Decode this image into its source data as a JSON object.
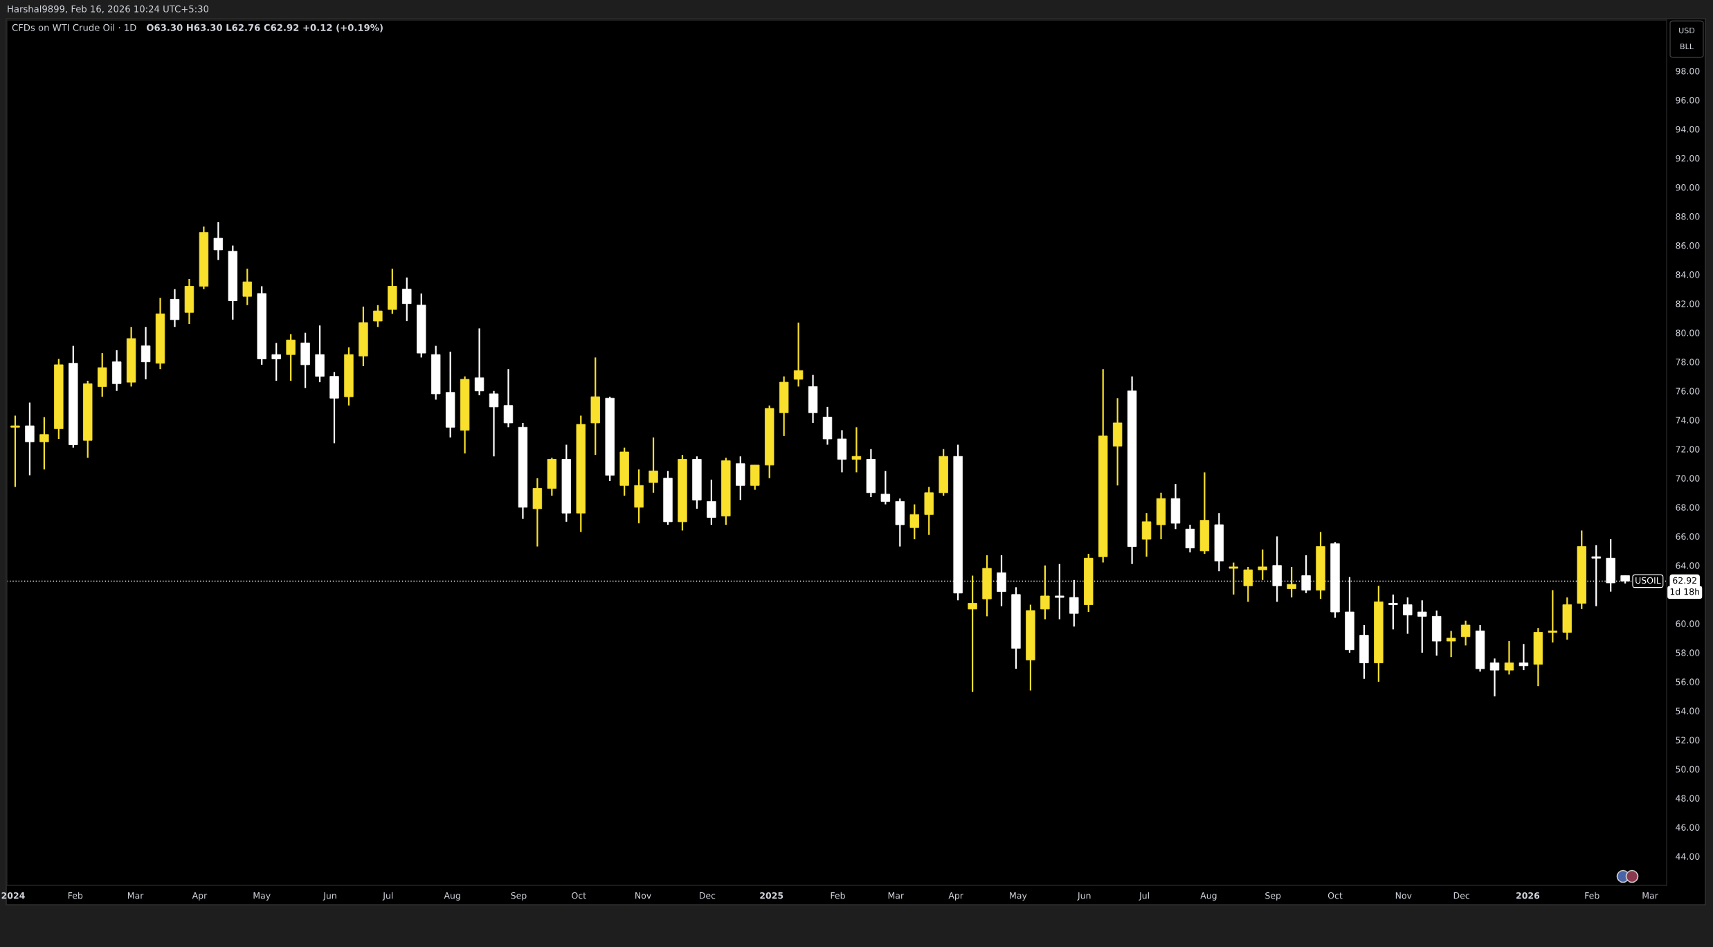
{
  "chart_data": {
    "type": "candlestick",
    "title": "CFDs on WTI Crude Oil · 1D",
    "subtitle": "O63.30 H63.30 L62.76 C62.92 +0.12 (+0.19%)",
    "annotations": [
      "Harshal9899, Feb 16, 2026 10:24 UTC+5:30",
      "USD",
      "BLL",
      "62.92",
      "1d 18h"
    ],
    "x": [
      "2024-01-03",
      "2024-01-10",
      "2024-01-17",
      "2024-01-24",
      "2024-01-31",
      "2024-02-07",
      "2024-02-14",
      "2024-02-21",
      "2024-02-28",
      "2024-03-06",
      "2024-03-13",
      "2024-03-20",
      "2024-03-27",
      "2024-04-03",
      "2024-04-10",
      "2024-04-17",
      "2024-04-24",
      "2024-05-01",
      "2024-05-08",
      "2024-05-15",
      "2024-05-22",
      "2024-05-29",
      "2024-06-05",
      "2024-06-12",
      "2024-06-19",
      "2024-06-26",
      "2024-07-03",
      "2024-07-10",
      "2024-07-17",
      "2024-07-24",
      "2024-07-31",
      "2024-08-07",
      "2024-08-14",
      "2024-08-21",
      "2024-08-28",
      "2024-09-04",
      "2024-09-11",
      "2024-09-18",
      "2024-09-25",
      "2024-10-02",
      "2024-10-09",
      "2024-10-16",
      "2024-10-23",
      "2024-10-30",
      "2024-11-06",
      "2024-11-13",
      "2024-11-20",
      "2024-11-27",
      "2024-12-04",
      "2024-12-11",
      "2024-12-18",
      "2024-12-25",
      "2025-01-01",
      "2025-01-08",
      "2025-01-15",
      "2025-01-22",
      "2025-01-29",
      "2025-02-05",
      "2025-02-12",
      "2025-02-19",
      "2025-02-26",
      "2025-03-05",
      "2025-03-12",
      "2025-03-19",
      "2025-03-26",
      "2025-04-02",
      "2025-04-09",
      "2025-04-16",
      "2025-04-23",
      "2025-04-30",
      "2025-05-07",
      "2025-05-14",
      "2025-05-21",
      "2025-05-28",
      "2025-06-04",
      "2025-06-11",
      "2025-06-18",
      "2025-06-25",
      "2025-07-02",
      "2025-07-09",
      "2025-07-16",
      "2025-07-23",
      "2025-07-30",
      "2025-08-06",
      "2025-08-13",
      "2025-08-20",
      "2025-08-27",
      "2025-09-03",
      "2025-09-10",
      "2025-09-17",
      "2025-09-24",
      "2025-10-01",
      "2025-10-08",
      "2025-10-15",
      "2025-10-22",
      "2025-10-29",
      "2025-11-05",
      "2025-11-12",
      "2025-11-19",
      "2025-11-26",
      "2025-12-03",
      "2025-12-10",
      "2025-12-17",
      "2025-12-24",
      "2025-12-31",
      "2026-01-07",
      "2026-01-14",
      "2026-01-21",
      "2026-01-28",
      "2026-02-04",
      "2026-02-11",
      "2026-02-18"
    ],
    "ohlc": [
      [
        73.5,
        74.3,
        69.4,
        73.6
      ],
      [
        73.6,
        75.2,
        70.2,
        72.5
      ],
      [
        72.5,
        74.2,
        70.6,
        73.0
      ],
      [
        73.4,
        78.2,
        72.7,
        77.8
      ],
      [
        77.9,
        79.1,
        72.1,
        72.3
      ],
      [
        72.6,
        76.7,
        71.4,
        76.5
      ],
      [
        76.3,
        78.6,
        75.6,
        77.6
      ],
      [
        78.0,
        78.8,
        76.0,
        76.5
      ],
      [
        76.6,
        80.4,
        76.3,
        79.6
      ],
      [
        79.1,
        80.4,
        76.8,
        78.0
      ],
      [
        77.9,
        82.4,
        77.5,
        81.3
      ],
      [
        82.3,
        83.0,
        80.4,
        80.9
      ],
      [
        81.4,
        83.7,
        80.6,
        83.2
      ],
      [
        83.2,
        87.3,
        83.0,
        86.9
      ],
      [
        86.5,
        87.6,
        85.0,
        85.7
      ],
      [
        85.6,
        86.0,
        80.9,
        82.2
      ],
      [
        82.5,
        84.4,
        81.9,
        83.5
      ],
      [
        82.7,
        83.2,
        77.8,
        78.2
      ],
      [
        78.5,
        79.3,
        76.7,
        78.2
      ],
      [
        78.5,
        79.9,
        76.7,
        79.5
      ],
      [
        79.3,
        80.0,
        76.2,
        77.8
      ],
      [
        78.5,
        80.5,
        76.6,
        77.0
      ],
      [
        77.0,
        77.3,
        72.4,
        75.5
      ],
      [
        75.6,
        79.0,
        75.0,
        78.5
      ],
      [
        78.4,
        81.8,
        77.7,
        80.7
      ],
      [
        80.8,
        81.9,
        80.4,
        81.5
      ],
      [
        81.6,
        84.4,
        81.3,
        83.2
      ],
      [
        83.0,
        83.8,
        80.8,
        82.0
      ],
      [
        81.9,
        82.7,
        78.3,
        78.6
      ],
      [
        78.5,
        79.1,
        75.4,
        75.8
      ],
      [
        75.9,
        78.7,
        72.8,
        73.5
      ],
      [
        73.3,
        77.0,
        71.7,
        76.8
      ],
      [
        76.9,
        80.3,
        75.7,
        76.0
      ],
      [
        75.8,
        76.0,
        71.5,
        74.9
      ],
      [
        75.0,
        77.5,
        73.5,
        73.8
      ],
      [
        73.5,
        73.8,
        67.2,
        68.0
      ],
      [
        67.9,
        70.0,
        65.3,
        69.3
      ],
      [
        69.3,
        71.4,
        68.8,
        71.3
      ],
      [
        71.3,
        72.3,
        67.0,
        67.6
      ],
      [
        67.6,
        74.3,
        66.3,
        73.7
      ],
      [
        73.8,
        78.3,
        71.6,
        75.6
      ],
      [
        75.5,
        75.6,
        69.8,
        70.2
      ],
      [
        69.5,
        72.1,
        68.8,
        71.8
      ],
      [
        68.0,
        70.6,
        66.9,
        69.5
      ],
      [
        69.7,
        72.8,
        69.0,
        70.5
      ],
      [
        70.0,
        70.5,
        66.8,
        67.0
      ],
      [
        67.0,
        71.6,
        66.4,
        71.3
      ],
      [
        71.3,
        71.5,
        67.9,
        68.5
      ],
      [
        68.4,
        69.9,
        66.8,
        67.3
      ],
      [
        67.4,
        71.4,
        66.8,
        71.2
      ],
      [
        71.0,
        71.5,
        68.5,
        69.5
      ],
      [
        69.5,
        70.9,
        69.2,
        70.9
      ],
      [
        70.9,
        75.0,
        70.0,
        74.8
      ],
      [
        74.5,
        77.0,
        72.9,
        76.6
      ],
      [
        76.8,
        80.7,
        76.3,
        77.4
      ],
      [
        76.3,
        77.1,
        73.8,
        74.5
      ],
      [
        74.2,
        74.9,
        72.3,
        72.7
      ],
      [
        72.7,
        73.3,
        70.4,
        71.3
      ],
      [
        71.3,
        73.5,
        70.4,
        71.5
      ],
      [
        71.3,
        72.0,
        68.7,
        69.0
      ],
      [
        68.9,
        70.5,
        68.2,
        68.4
      ],
      [
        68.4,
        68.6,
        65.3,
        66.8
      ],
      [
        66.6,
        68.2,
        65.8,
        67.5
      ],
      [
        67.5,
        69.4,
        66.1,
        69.0
      ],
      [
        69.0,
        72.0,
        68.8,
        71.5
      ],
      [
        71.5,
        72.3,
        61.6,
        62.1
      ],
      [
        61.0,
        63.3,
        55.3,
        61.4
      ],
      [
        61.7,
        64.7,
        60.5,
        63.8
      ],
      [
        63.5,
        64.7,
        61.2,
        62.2
      ],
      [
        62.0,
        62.5,
        56.9,
        58.3
      ],
      [
        57.5,
        61.3,
        55.4,
        60.9
      ],
      [
        61.0,
        64.0,
        60.3,
        61.9
      ],
      [
        61.9,
        64.1,
        60.3,
        61.8
      ],
      [
        61.8,
        63.0,
        59.8,
        60.7
      ],
      [
        61.3,
        64.8,
        60.8,
        64.5
      ],
      [
        64.6,
        77.5,
        64.2,
        72.9
      ],
      [
        72.2,
        75.5,
        69.5,
        73.8
      ],
      [
        76.0,
        77.0,
        64.1,
        65.3
      ],
      [
        65.8,
        67.6,
        64.6,
        67.0
      ],
      [
        66.8,
        69.0,
        65.8,
        68.6
      ],
      [
        68.6,
        69.6,
        66.5,
        66.9
      ],
      [
        66.5,
        66.8,
        64.9,
        65.2
      ],
      [
        65.0,
        70.4,
        64.8,
        67.1
      ],
      [
        66.8,
        67.6,
        63.6,
        64.3
      ],
      [
        63.8,
        64.2,
        62.0,
        63.9
      ],
      [
        62.6,
        63.9,
        61.5,
        63.7
      ],
      [
        63.7,
        65.1,
        63.0,
        63.9
      ],
      [
        64.0,
        66.0,
        61.5,
        62.6
      ],
      [
        62.4,
        63.9,
        61.8,
        62.7
      ],
      [
        63.3,
        64.7,
        62.1,
        62.3
      ],
      [
        62.3,
        66.3,
        61.7,
        65.3
      ],
      [
        65.5,
        65.6,
        60.4,
        60.8
      ],
      [
        60.8,
        63.2,
        58.0,
        58.2
      ],
      [
        59.2,
        59.9,
        56.2,
        57.3
      ],
      [
        57.3,
        62.6,
        56.0,
        61.5
      ],
      [
        61.4,
        62.0,
        59.6,
        61.3
      ],
      [
        61.3,
        61.8,
        59.3,
        60.6
      ],
      [
        60.8,
        61.6,
        58.0,
        60.5
      ],
      [
        60.5,
        60.9,
        57.8,
        58.8
      ],
      [
        58.8,
        59.5,
        57.7,
        59.0
      ],
      [
        59.1,
        60.2,
        58.5,
        59.9
      ],
      [
        59.5,
        59.9,
        56.7,
        56.9
      ],
      [
        57.3,
        57.6,
        55.0,
        56.8
      ],
      [
        56.8,
        58.8,
        56.5,
        57.3
      ],
      [
        57.3,
        58.6,
        56.8,
        57.1
      ],
      [
        57.2,
        59.7,
        55.7,
        59.4
      ],
      [
        59.4,
        62.3,
        58.7,
        59.5
      ],
      [
        59.4,
        61.8,
        58.9,
        61.3
      ],
      [
        61.4,
        66.4,
        61.0,
        65.3
      ],
      [
        64.6,
        65.4,
        61.2,
        64.5
      ],
      [
        64.5,
        65.8,
        62.2,
        62.8
      ],
      [
        63.3,
        63.3,
        62.76,
        62.92
      ]
    ],
    "colors": [
      "#f8e02c",
      "#ffffff",
      "#f8e02c",
      "#f8e02c",
      "#ffffff",
      "#f8e02c",
      "#f8e02c",
      "#ffffff",
      "#f8e02c",
      "#ffffff",
      "#f8e02c",
      "#ffffff",
      "#f8e02c",
      "#f8e02c",
      "#ffffff",
      "#ffffff",
      "#f8e02c",
      "#ffffff",
      "#ffffff",
      "#f8e02c",
      "#ffffff",
      "#ffffff",
      "#ffffff",
      "#f8e02c",
      "#f8e02c",
      "#f8e02c",
      "#f8e02c",
      "#ffffff",
      "#ffffff",
      "#ffffff",
      "#ffffff",
      "#f8e02c",
      "#ffffff",
      "#ffffff",
      "#ffffff",
      "#ffffff",
      "#f8e02c",
      "#f8e02c",
      "#ffffff",
      "#f8e02c",
      "#f8e02c",
      "#ffffff",
      "#f8e02c",
      "#f8e02c",
      "#f8e02c",
      "#ffffff",
      "#f8e02c",
      "#ffffff",
      "#ffffff",
      "#f8e02c",
      "#ffffff",
      "#f8e02c",
      "#f8e02c",
      "#f8e02c",
      "#f8e02c",
      "#ffffff",
      "#ffffff",
      "#ffffff",
      "#f8e02c",
      "#ffffff",
      "#ffffff",
      "#ffffff",
      "#f8e02c",
      "#f8e02c",
      "#f8e02c",
      "#ffffff",
      "#f8e02c",
      "#f8e02c",
      "#ffffff",
      "#ffffff",
      "#f8e02c",
      "#f8e02c",
      "#ffffff",
      "#ffffff",
      "#f8e02c",
      "#f8e02c",
      "#f8e02c",
      "#ffffff",
      "#f8e02c",
      "#f8e02c",
      "#ffffff",
      "#ffffff",
      "#f8e02c",
      "#ffffff",
      "#f8e02c",
      "#f8e02c",
      "#f8e02c",
      "#ffffff",
      "#f8e02c",
      "#ffffff",
      "#f8e02c",
      "#ffffff",
      "#ffffff",
      "#ffffff",
      "#f8e02c",
      "#ffffff",
      "#ffffff",
      "#ffffff",
      "#ffffff",
      "#f8e02c",
      "#f8e02c",
      "#ffffff",
      "#ffffff",
      "#f8e02c",
      "#ffffff",
      "#f8e02c",
      "#f8e02c",
      "#f8e02c",
      "#f8e02c",
      "#ffffff",
      "#ffffff",
      "#ffffff"
    ],
    "xlim": [
      "2023-12-30",
      "2026-03-10"
    ],
    "xticks": [
      {
        "value": "2024-01-02",
        "label": "2024"
      },
      {
        "value": "2024-02-01",
        "label": "Feb"
      },
      {
        "value": "2024-03-01",
        "label": "Mar"
      },
      {
        "value": "2024-04-01",
        "label": "Apr"
      },
      {
        "value": "2024-05-01",
        "label": "May"
      },
      {
        "value": "2024-06-03",
        "label": "Jun"
      },
      {
        "value": "2024-07-01",
        "label": "Jul"
      },
      {
        "value": "2024-08-01",
        "label": "Aug"
      },
      {
        "value": "2024-09-02",
        "label": "Sep"
      },
      {
        "value": "2024-10-01",
        "label": "Oct"
      },
      {
        "value": "2024-11-01",
        "label": "Nov"
      },
      {
        "value": "2024-12-02",
        "label": "Dec"
      },
      {
        "value": "2025-01-02",
        "label": "2025"
      },
      {
        "value": "2025-02-03",
        "label": "Feb"
      },
      {
        "value": "2025-03-03",
        "label": "Mar"
      },
      {
        "value": "2025-04-01",
        "label": "Apr"
      },
      {
        "value": "2025-05-01",
        "label": "May"
      },
      {
        "value": "2025-06-02",
        "label": "Jun"
      },
      {
        "value": "2025-07-01",
        "label": "Jul"
      },
      {
        "value": "2025-08-01",
        "label": "Aug"
      },
      {
        "value": "2025-09-01",
        "label": "Sep"
      },
      {
        "value": "2025-10-01",
        "label": "Oct"
      },
      {
        "value": "2025-11-03",
        "label": "Nov"
      },
      {
        "value": "2025-12-01",
        "label": "Dec"
      },
      {
        "value": "2026-01-02",
        "label": "2026"
      },
      {
        "value": "2026-02-02",
        "label": "Feb"
      },
      {
        "value": "2026-03-02",
        "label": "Mar"
      }
    ],
    "ylim": [
      42.0,
      101.5
    ],
    "yticks": [
      {
        "value": 44,
        "label": "44.00"
      },
      {
        "value": 46,
        "label": "46.00"
      },
      {
        "value": 48,
        "label": "48.00"
      },
      {
        "value": 50,
        "label": "50.00"
      },
      {
        "value": 52,
        "label": "52.00"
      },
      {
        "value": 54,
        "label": "54.00"
      },
      {
        "value": 56,
        "label": "56.00"
      },
      {
        "value": 58,
        "label": "58.00"
      },
      {
        "value": 60,
        "label": "60.00"
      },
      {
        "value": 64,
        "label": "64.00"
      },
      {
        "value": 66,
        "label": "66.00"
      },
      {
        "value": 68,
        "label": "68.00"
      },
      {
        "value": 70,
        "label": "70.00"
      },
      {
        "value": 72,
        "label": "72.00"
      },
      {
        "value": 74,
        "label": "74.00"
      },
      {
        "value": 76,
        "label": "76.00"
      },
      {
        "value": 78,
        "label": "78.00"
      },
      {
        "value": 80,
        "label": "80.00"
      },
      {
        "value": 82,
        "label": "82.00"
      },
      {
        "value": 84,
        "label": "84.00"
      },
      {
        "value": 86,
        "label": "86.00"
      },
      {
        "value": 88,
        "label": "88.00"
      },
      {
        "value": 90,
        "label": "90.00"
      },
      {
        "value": 92,
        "label": "92.00"
      },
      {
        "value": 94,
        "label": "94.00"
      },
      {
        "value": 96,
        "label": "96.00"
      },
      {
        "value": 98,
        "label": "98.00"
      }
    ],
    "ref_lines": [
      {
        "axis": "y",
        "value": 62.92,
        "label": "USOIL",
        "color": "#ffffff",
        "line_style": "dotted"
      }
    ]
  }
}
